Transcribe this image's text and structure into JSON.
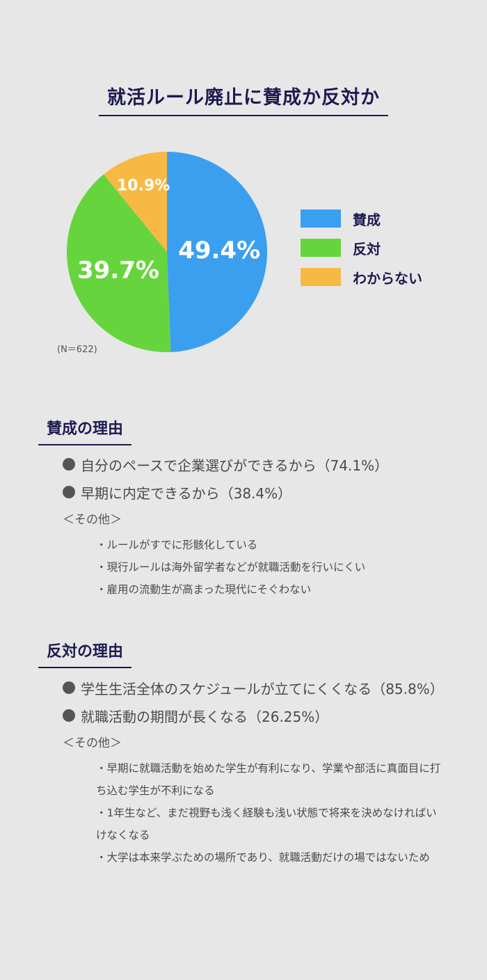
{
  "chart_data": {
    "type": "pie",
    "title": "就活ルール廃止に賛成か反対か",
    "slices": [
      {
        "label": "賛成",
        "value": 49.4,
        "display": "49.4%",
        "color": "#3b9ff0"
      },
      {
        "label": "反対",
        "value": 39.7,
        "display": "39.7%",
        "color": "#66d53d"
      },
      {
        "label": "わからない",
        "value": 10.9,
        "display": "10.9%",
        "color": "#f8b944"
      }
    ],
    "note": "(N＝622)",
    "legend_position": "right"
  },
  "pro": {
    "heading": "賛成の理由",
    "reasons": [
      "自分のペースで企業選びができるから（74.1%）",
      "早期に内定できるから（38.4%）"
    ],
    "other_label": "＜その他＞",
    "others": [
      "・ルールがすでに形骸化している",
      "・現行ルールは海外留学者などが就職活動を行いにくい",
      "・雇用の流動生が高まった現代にそぐわない"
    ]
  },
  "con": {
    "heading": "反対の理由",
    "reasons": [
      "学生生活全体のスケジュールが立てにくくなる（85.8%）",
      "就職活動の期間が長くなる（26.25%）"
    ],
    "other_label": "＜その他＞",
    "others": [
      "・早期に就職活動を始めた学生が有利になり、学業や部活に真面目に打ち込む学生が不利になる",
      "・1年生など、まだ視野も浅く経験も浅い状態で将来を決めなければいけなくなる",
      "・大学は本来学ぶための場所であり、就職活動だけの場ではないため"
    ]
  }
}
